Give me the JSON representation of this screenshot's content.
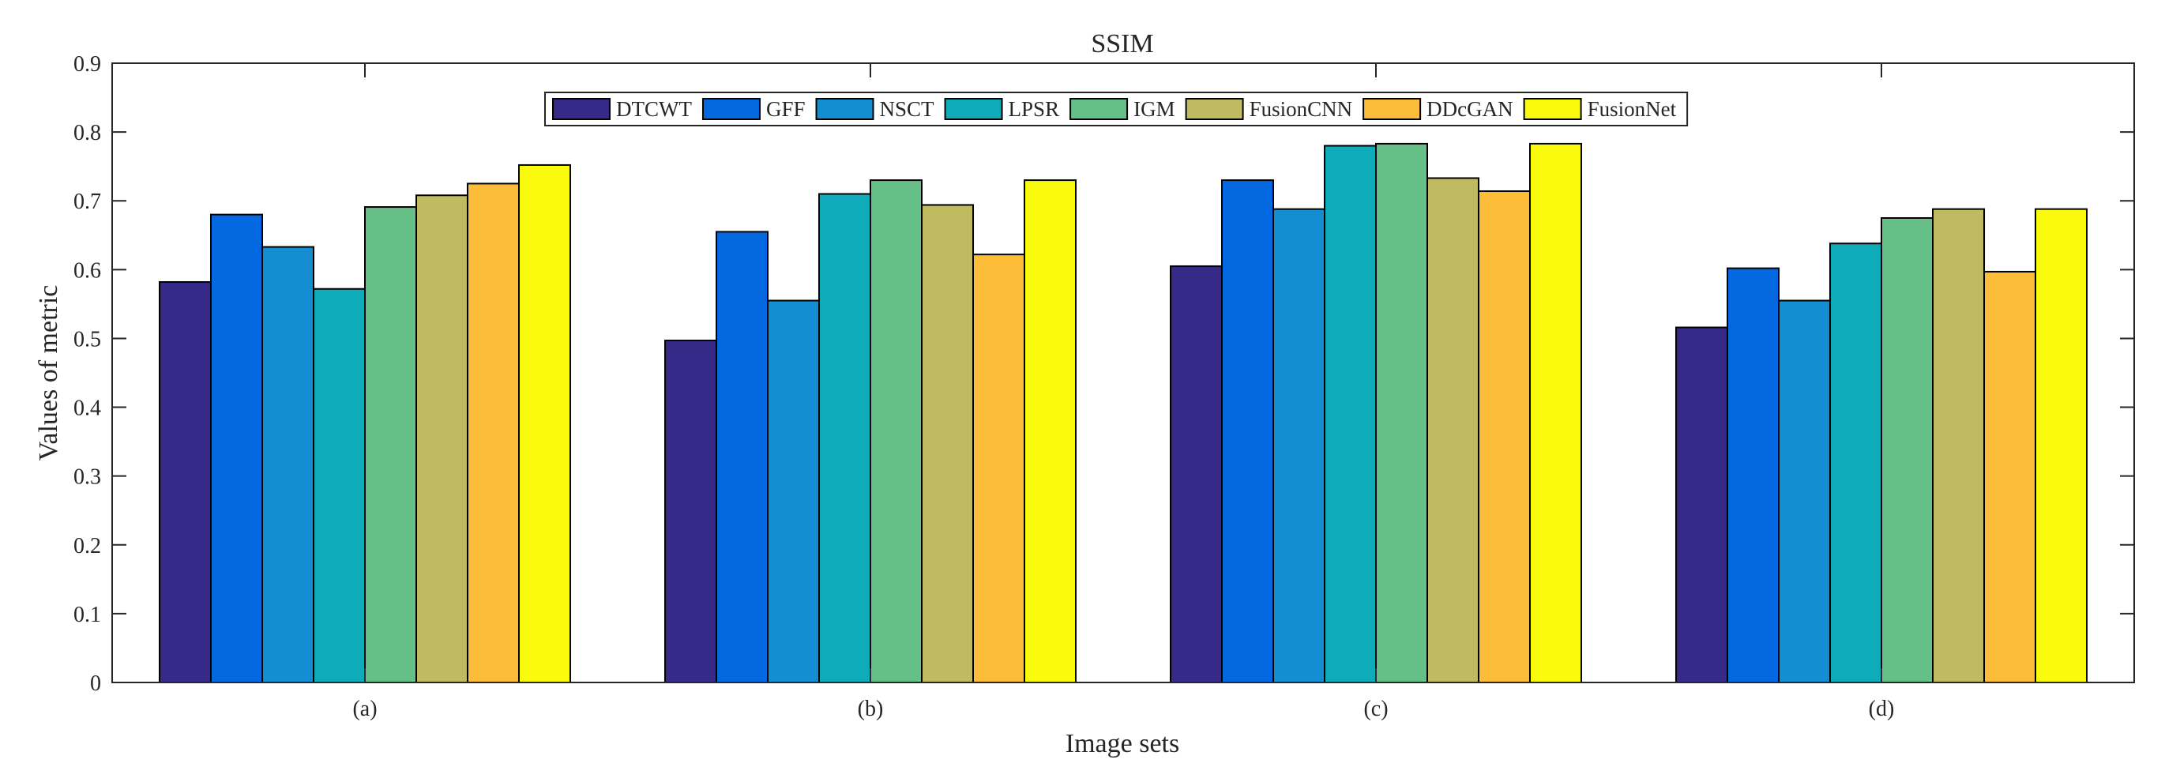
{
  "chart_data": {
    "type": "bar",
    "title": "SSIM",
    "xlabel": "Image sets",
    "ylabel": "Values of metric",
    "categories": [
      "(a)",
      "(b)",
      "(c)",
      "(d)"
    ],
    "ylim": [
      0,
      0.9
    ],
    "yticks": [
      "0",
      "0.1",
      "0.2",
      "0.3",
      "0.4",
      "0.5",
      "0.6",
      "0.7",
      "0.8",
      "0.9"
    ],
    "grid": false,
    "legend_position": "top-center",
    "series": [
      {
        "name": "DTCWT",
        "color": "#352a87",
        "values": [
          0.582,
          0.497,
          0.605,
          0.516
        ]
      },
      {
        "name": "GFF",
        "color": "#0468e1",
        "values": [
          0.68,
          0.655,
          0.73,
          0.602
        ]
      },
      {
        "name": "NSCT",
        "color": "#148ed1",
        "values": [
          0.633,
          0.555,
          0.688,
          0.555
        ]
      },
      {
        "name": "LPSR",
        "color": "#10abba",
        "values": [
          0.572,
          0.71,
          0.78,
          0.638
        ]
      },
      {
        "name": "IGM",
        "color": "#66bf87",
        "values": [
          0.691,
          0.73,
          0.783,
          0.675
        ]
      },
      {
        "name": "FusionCNN",
        "color": "#bfbb60",
        "values": [
          0.708,
          0.694,
          0.733,
          0.688
        ]
      },
      {
        "name": "DDcGAN",
        "color": "#fdbd39",
        "values": [
          0.725,
          0.622,
          0.714,
          0.597
        ]
      },
      {
        "name": "FusionNet",
        "color": "#f9fa0e",
        "values": [
          0.752,
          0.73,
          0.783,
          0.688
        ]
      }
    ]
  }
}
